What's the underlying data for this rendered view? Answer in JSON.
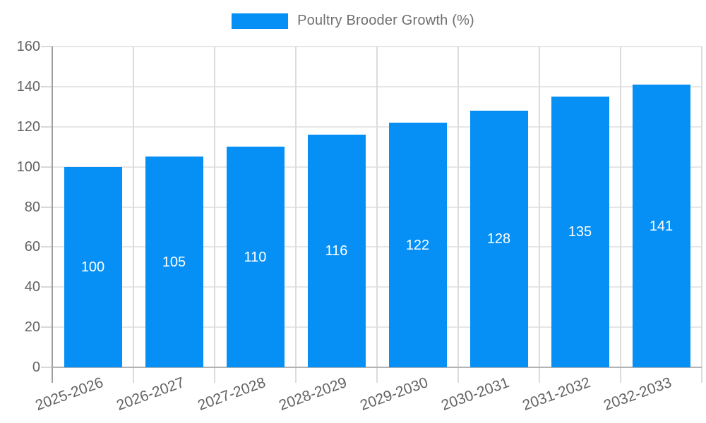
{
  "chart_data": {
    "type": "bar",
    "title": "",
    "legend": {
      "label": "Poultry Brooder Growth (%)",
      "position": "top-center"
    },
    "categories": [
      "2025-2026",
      "2026-2027",
      "2027-2028",
      "2028-2029",
      "2029-2030",
      "2030-2031",
      "2031-2032",
      "2032-2033"
    ],
    "series": [
      {
        "name": "Poultry Brooder Growth (%)",
        "values": [
          100,
          105,
          110,
          116,
          122,
          128,
          135,
          141
        ]
      }
    ],
    "value_labels_shown": true,
    "xlabel": "",
    "ylabel": "",
    "ylim": [
      0,
      160
    ],
    "yticks": [
      0,
      20,
      40,
      60,
      80,
      100,
      120,
      140,
      160
    ],
    "grid": true,
    "x_tick_rotation_deg": -20,
    "colors": {
      "bar": "#0690f5",
      "value_label_text": "#ffffff",
      "axis_text": "#636363",
      "legend_text": "#6f6f6f",
      "h_gridline": "#e6e6e6",
      "v_gridline": "#dcdcdc",
      "y_axis_line": "#9e9e9e",
      "baseline": "#b3b3b3",
      "background": "#ffffff"
    }
  }
}
